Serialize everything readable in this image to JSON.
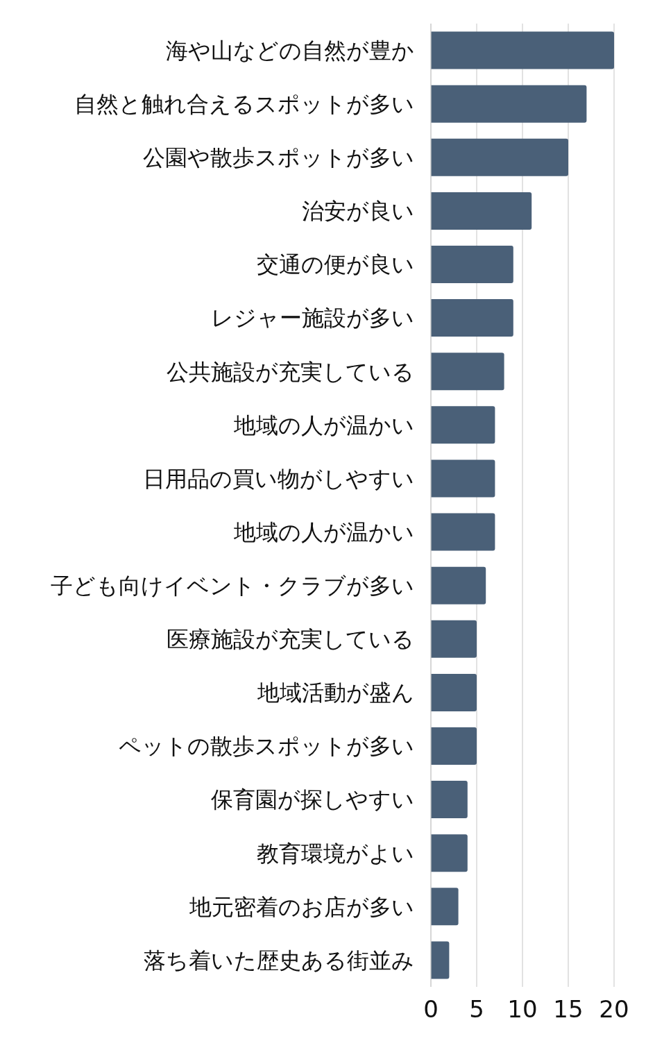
{
  "chart_data": {
    "type": "bar",
    "orientation": "horizontal",
    "categories": [
      "海や山などの自然が豊か",
      "自然と触れ合えるスポットが多い",
      "公園や散歩スポットが多い",
      "治安が良い",
      "交通の便が良い",
      "レジャー施設が多い",
      "公共施設が充実している",
      "地域の人が温かい",
      "日用品の買い物がしやすい",
      "地域の人が温かい",
      "子ども向けイベント・クラブが多い",
      "医療施設が充実している",
      "地域活動が盛ん",
      "ペットの散歩スポットが多い",
      "保育園が探しやすい",
      "教育環境がよい",
      "地元密着のお店が多い",
      "落ち着いた歴史ある街並み"
    ],
    "values": [
      20,
      17,
      15,
      11,
      9,
      9,
      8,
      7,
      7,
      7,
      6,
      5,
      5,
      5,
      4,
      4,
      3,
      2
    ],
    "color": "#4a6078",
    "xlim": [
      0,
      20
    ],
    "xticks": [
      0,
      5,
      10,
      15,
      20
    ],
    "grid": "x"
  }
}
